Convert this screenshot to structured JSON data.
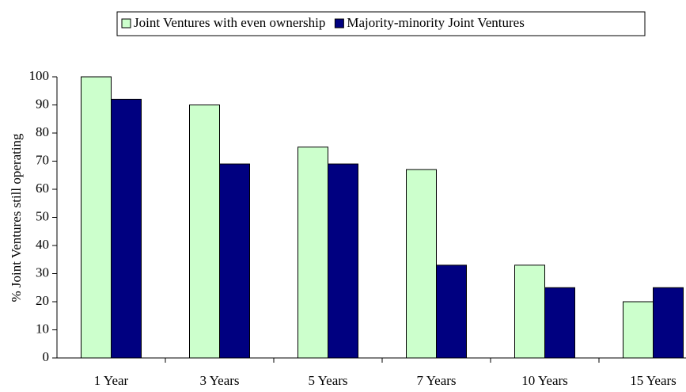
{
  "chart_data": {
    "type": "bar",
    "y_label": "% Joint Ventures still operating",
    "categories": [
      "1 Year",
      "3 Years",
      "5 Years",
      "7 Years",
      "10 Years",
      "15 Years"
    ],
    "series": [
      {
        "name": "Joint Ventures with even ownership",
        "color": "#ccffcc",
        "values": [
          100,
          90,
          75,
          67,
          33,
          20
        ]
      },
      {
        "name": "Majority-minority Joint Ventures",
        "color": "#000080",
        "values": [
          92,
          69,
          69,
          33,
          25,
          25
        ]
      }
    ],
    "ylim": [
      0,
      100
    ],
    "yticks": [
      0,
      10,
      20,
      30,
      40,
      50,
      60,
      70,
      80,
      90,
      100
    ],
    "legend": "top"
  }
}
